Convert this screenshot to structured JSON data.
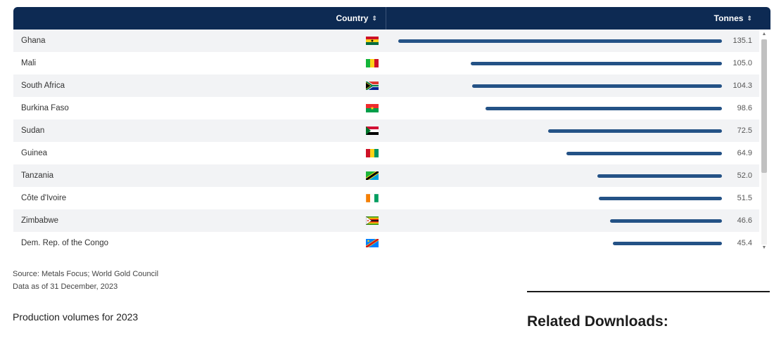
{
  "table": {
    "header_country": "Country",
    "header_tonnes": "Tonnes",
    "sort_icon": "⇕"
  },
  "chart_data": {
    "type": "bar",
    "categories": [
      "Ghana",
      "Mali",
      "South Africa",
      "Burkina Faso",
      "Sudan",
      "Guinea",
      "Tanzania",
      "Côte d'Ivoire",
      "Zimbabwe",
      "Dem. Rep. of the Congo"
    ],
    "values": [
      135.1,
      105.0,
      104.3,
      98.6,
      72.5,
      64.9,
      52.0,
      51.5,
      46.6,
      45.4
    ],
    "value_labels": [
      "135.1",
      "105.0",
      "104.3",
      "98.6",
      "72.5",
      "64.9",
      "52.0",
      "51.5",
      "46.6",
      "45.4"
    ],
    "xlabel": "Country",
    "ylabel": "Tonnes",
    "bar_color": "#245286",
    "orientation": "horizontal-right-aligned"
  },
  "flags": [
    {
      "type": "h3",
      "colors": [
        "#ce1126",
        "#fcd116",
        "#006b3f"
      ],
      "star": "#000000"
    },
    {
      "type": "v3",
      "colors": [
        "#14b53a",
        "#fcd116",
        "#ce1126"
      ]
    },
    {
      "type": "za"
    },
    {
      "type": "h2",
      "colors": [
        "#ef2b2d",
        "#009e49"
      ],
      "star": "#fcd116"
    },
    {
      "type": "sd"
    },
    {
      "type": "v3",
      "colors": [
        "#ce1126",
        "#fcd116",
        "#009460"
      ]
    },
    {
      "type": "tz"
    },
    {
      "type": "v3",
      "colors": [
        "#f77f00",
        "#ffffff",
        "#009e60"
      ]
    },
    {
      "type": "zw"
    },
    {
      "type": "cd"
    }
  ],
  "footer": {
    "source": "Source: Metals Focus; World Gold Council",
    "date": "Data as of 31 December, 2023",
    "subtitle": "Production volumes for 2023",
    "related": "Related Downloads:"
  }
}
